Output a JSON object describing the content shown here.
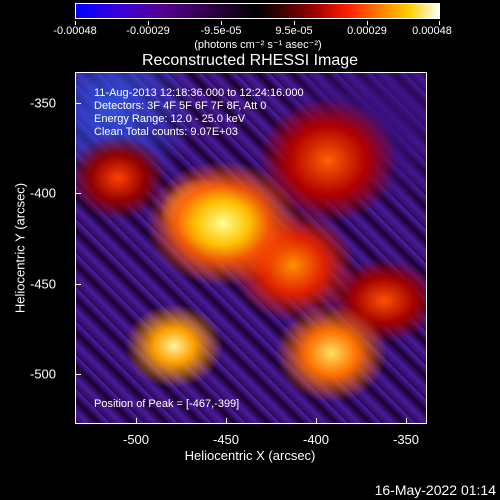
{
  "colorbar": {
    "labels": [
      "-0.00048",
      "-0.00029",
      "-9.5e-05",
      "9.5e-05",
      "0.00029",
      "0.00048"
    ],
    "units": "(photons cm⁻² s⁻¹ asec⁻²)"
  },
  "title": "Reconstructed RHESSI Image",
  "info": {
    "time_range": "11-Aug-2013 12:18:36.000 to 12:24:16.000",
    "detectors": "Detectors: 3F 4F 5F 6F 7F 8F, Att 0",
    "energy": "Energy Range: 12.0 - 25.0 keV",
    "clean": "Clean    Total counts: 9.07E+03",
    "peak": "Position of Peak = [-467,-399]"
  },
  "axes": {
    "xlabel": "Heliocentric X (arcsec)",
    "ylabel": "Heliocentric Y (arcsec)",
    "xticks": [
      "-500",
      "-450",
      "-400",
      "-350"
    ],
    "yticks": [
      "-350",
      "-400",
      "-450",
      "-500"
    ]
  },
  "datestamp": "16-May-2022 01:14"
}
